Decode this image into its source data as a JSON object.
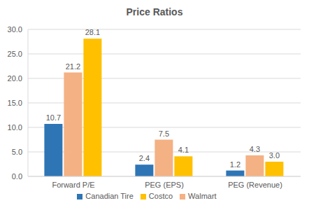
{
  "chart_data": {
    "type": "bar",
    "title": "Price Ratios",
    "categories": [
      "Forward P/E",
      "PEG (EPS)",
      "PEG (Revenue)"
    ],
    "series": [
      {
        "name": "Canadian Tire",
        "color": "#2e75b6",
        "values": [
          10.7,
          2.4,
          1.2
        ],
        "value_labels": [
          "10.7",
          "2.4",
          "1.2"
        ]
      },
      {
        "name": "Walmart",
        "color": "#f4b183",
        "values": [
          21.2,
          7.5,
          4.3
        ],
        "value_labels": [
          "21.2",
          "7.5",
          "4.3"
        ]
      },
      {
        "name": "Costco",
        "color": "#ffc000",
        "values": [
          28.1,
          4.1,
          3.0
        ],
        "value_labels": [
          "28.1",
          "4.1",
          "3.0"
        ]
      }
    ],
    "ylim": [
      0,
      30
    ],
    "yticks": [
      {
        "value": 0,
        "label": "0.0"
      },
      {
        "value": 5,
        "label": "5.0"
      },
      {
        "value": 10,
        "label": "10.0"
      },
      {
        "value": 15,
        "label": "15.0"
      },
      {
        "value": 20,
        "label": "20.0"
      },
      {
        "value": 25,
        "label": "25.0"
      },
      {
        "value": 30,
        "label": "30.0"
      }
    ],
    "grid": true,
    "legend": "bottom",
    "data_labels": true
  }
}
